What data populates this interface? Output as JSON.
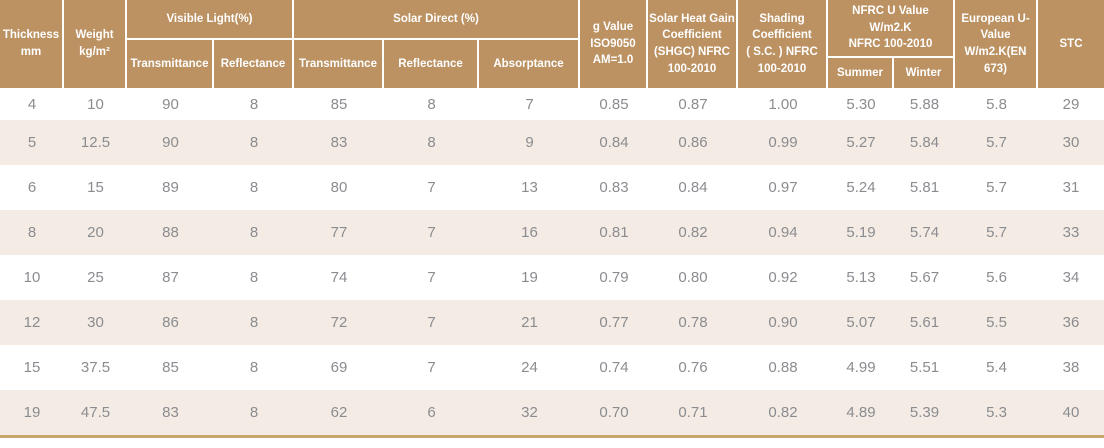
{
  "chart_data": {
    "type": "table",
    "header": {
      "thickness": "Thickness\nmm",
      "weight": "Weight\nkg/m²",
      "visible_light": {
        "label": "Visible Light(%)",
        "transmittance": "Transmittance",
        "reflectance": "Reflectance"
      },
      "solar_direct": {
        "label": "Solar  Direct (%)",
        "transmittance": "Transmittance",
        "reflectance": "Reflectance",
        "absorptance": "Absorptance"
      },
      "g_value": "g Value\nISO9050\nAM=1.0",
      "shgc": "Solar Heat Gain\nCoefficient\n(SHGC) NFRC\n100-2010",
      "shading_coefficient": "Shading\nCoefficient\n( S.C. ) NFRC\n100-2010",
      "nfrc_u_value": {
        "label": "NFRC U Value\nW/m2.K\nNFRC 100-2010",
        "summer": "Summer",
        "winter": "Winter"
      },
      "european_u_value": "European U-\nValue\nW/m2.K(EN\n673)",
      "stc": "STC"
    },
    "columns": [
      "Thickness mm",
      "Weight kg/m²",
      "Visible Light Transmittance %",
      "Visible Light Reflectance %",
      "Solar Direct Transmittance %",
      "Solar Direct Reflectance %",
      "Solar Direct Absorptance %",
      "g Value ISO9050 AM=1.0",
      "Solar Heat Gain Coefficient (SHGC) NFRC 100-2010",
      "Shading Coefficient (S.C.) NFRC 100-2010",
      "NFRC U Value W/m2.K Summer",
      "NFRC U Value W/m2.K Winter",
      "European U-Value W/m2.K (EN 673)",
      "STC"
    ],
    "rows": [
      [
        "4",
        "10",
        "90",
        "8",
        "85",
        "8",
        "7",
        "0.85",
        "0.87",
        "1.00",
        "5.30",
        "5.88",
        "5.8",
        "29"
      ],
      [
        "5",
        "12.5",
        "90",
        "8",
        "83",
        "8",
        "9",
        "0.84",
        "0.86",
        "0.99",
        "5.27",
        "5.84",
        "5.7",
        "30"
      ],
      [
        "6",
        "15",
        "89",
        "8",
        "80",
        "7",
        "13",
        "0.83",
        "0.84",
        "0.97",
        "5.24",
        "5.81",
        "5.7",
        "31"
      ],
      [
        "8",
        "20",
        "88",
        "8",
        "77",
        "7",
        "16",
        "0.81",
        "0.82",
        "0.94",
        "5.19",
        "5.74",
        "5.7",
        "33"
      ],
      [
        "10",
        "25",
        "87",
        "8",
        "74",
        "7",
        "19",
        "0.79",
        "0.80",
        "0.92",
        "5.13",
        "5.67",
        "5.6",
        "34"
      ],
      [
        "12",
        "30",
        "86",
        "8",
        "72",
        "7",
        "21",
        "0.77",
        "0.78",
        "0.90",
        "5.07",
        "5.61",
        "5.5",
        "36"
      ],
      [
        "15",
        "37.5",
        "85",
        "8",
        "69",
        "7",
        "24",
        "0.74",
        "0.76",
        "0.88",
        "4.99",
        "5.51",
        "5.4",
        "38"
      ],
      [
        "19",
        "47.5",
        "83",
        "8",
        "62",
        "6",
        "32",
        "0.70",
        "0.71",
        "0.82",
        "4.89",
        "5.39",
        "5.3",
        "40"
      ]
    ]
  },
  "colors": {
    "header_bg": "#bc9263",
    "header_text": "#ffffff",
    "row_alt_bg": "#f4ebe4",
    "body_text": "#8a8c90",
    "bottom_border": "#c6a66a"
  }
}
